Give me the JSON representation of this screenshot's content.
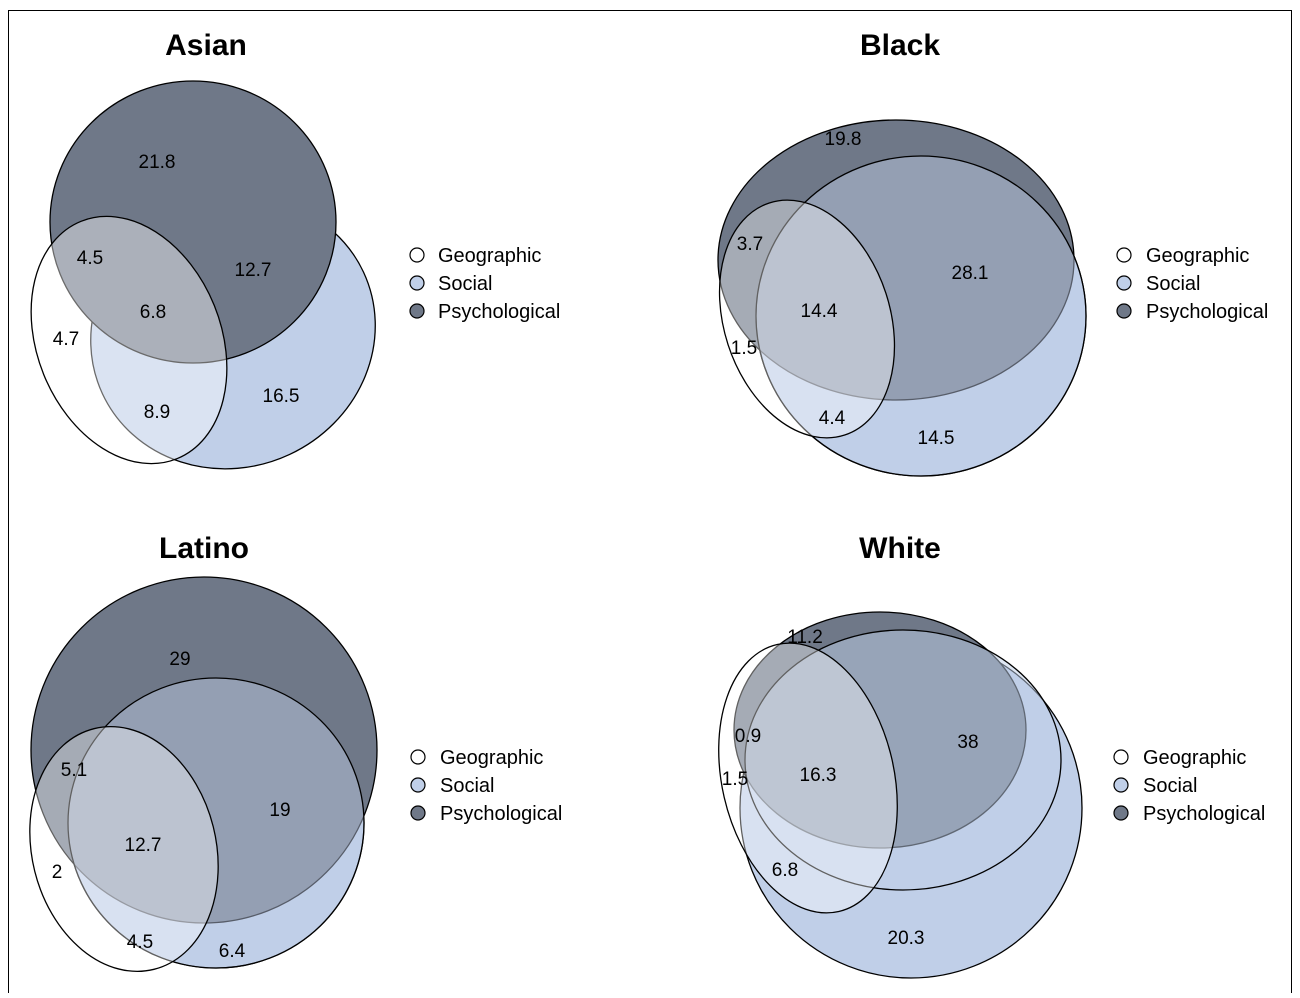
{
  "legend": {
    "items": [
      {
        "label": "Geographic",
        "color": "#ffffff"
      },
      {
        "label": "Social",
        "color": "#c0cfe8"
      },
      {
        "label": "Psychological",
        "color": "#6f7888"
      }
    ]
  },
  "colors": {
    "geographic": "#ffffff",
    "social": "#c0cfe8",
    "psychological": "#6f7888",
    "outline": "#000000"
  },
  "panels": [
    {
      "title": "Asian",
      "regions": {
        "psychological_only": "21.8",
        "geographic_psychological": "4.5",
        "social_psychological": "12.7",
        "all_three": "6.8",
        "geographic_only": "4.7",
        "geographic_social": "8.9",
        "social_only": "16.5"
      }
    },
    {
      "title": "Black",
      "regions": {
        "psychological_only": "19.8",
        "geographic_psychological": "3.7",
        "social_psychological": "28.1",
        "all_three": "14.4",
        "geographic_only": "1.5",
        "geographic_social": "4.4",
        "social_only": "14.5"
      }
    },
    {
      "title": "Latino",
      "regions": {
        "psychological_only": "29",
        "geographic_psychological": "5.1",
        "social_psychological": "19",
        "all_three": "12.7",
        "geographic_only": "2",
        "geographic_social": "4.5",
        "social_only": "6.4"
      }
    },
    {
      "title": "White",
      "regions": {
        "psychological_only": "11.2",
        "geographic_psychological": "0.9",
        "social_psychological": "38",
        "all_three": "16.3",
        "geographic_only": "1.5",
        "geographic_social": "6.8",
        "social_only": "20.3"
      }
    }
  ]
}
